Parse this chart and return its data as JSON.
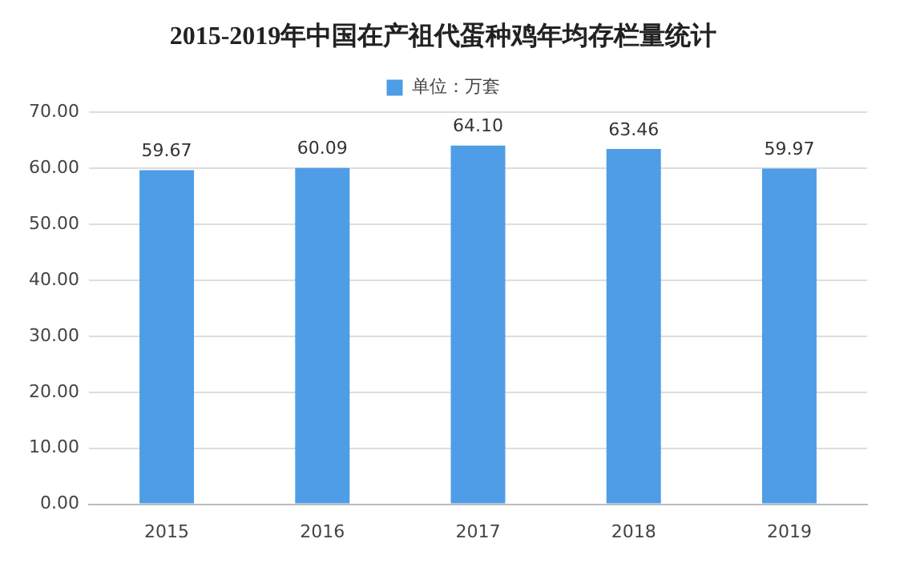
{
  "chart_data": {
    "type": "bar",
    "title": "2015-2019年中国在产祖代蛋种鸡年均存栏量统计",
    "categories": [
      "2015",
      "2016",
      "2017",
      "2018",
      "2019"
    ],
    "series": [
      {
        "name": "单位：万套",
        "color": "#4e9de6",
        "values": [
          59.67,
          60.09,
          64.1,
          63.46,
          59.97
        ],
        "value_labels": [
          "59.67",
          "60.09",
          "64.10",
          "63.46",
          "59.97"
        ]
      }
    ],
    "ylim": [
      0,
      70
    ],
    "yticks": [
      {
        "value": 0,
        "label": "0.00"
      },
      {
        "value": 10,
        "label": "10.00"
      },
      {
        "value": 20,
        "label": "20.00"
      },
      {
        "value": 30,
        "label": "30.00"
      },
      {
        "value": 40,
        "label": "40.00"
      },
      {
        "value": 50,
        "label": "50.00"
      },
      {
        "value": 60,
        "label": "60.00"
      },
      {
        "value": 70,
        "label": "70.00"
      }
    ],
    "grid": "y",
    "legend": "top"
  }
}
